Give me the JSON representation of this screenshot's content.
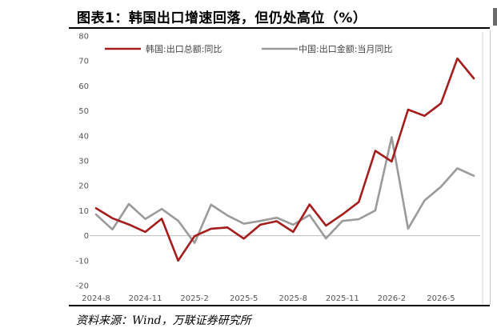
{
  "header": {
    "title": "图表1：韩国出口增速回落，但仍处高位（%）"
  },
  "footer": {
    "source": "资料来源：Wind，万联证券研究所"
  },
  "chart_data": {
    "type": "line",
    "title": "",
    "xlabel": "",
    "ylabel": "",
    "ylim": [
      -20,
      80
    ],
    "yticks": [
      -20,
      -10,
      0,
      10,
      20,
      30,
      40,
      50,
      60,
      70,
      80
    ],
    "categories": [
      "2024-8",
      "2024-9",
      "2024-10",
      "2024-11",
      "2024-12",
      "2025-1",
      "2025-2",
      "2025-3",
      "2025-4",
      "2025-5",
      "2025-6",
      "2025-7",
      "2025-8",
      "2025-9",
      "2025-10",
      "2025-11",
      "2025-12",
      "2026-1",
      "2026-2",
      "2026-3",
      "2026-4",
      "2026-5",
      "2026-6",
      "2026-7"
    ],
    "xticks": [
      "2024-8",
      "2024-11",
      "2025-2",
      "2025-5",
      "2025-8",
      "2025-11",
      "2026-2",
      "2026-5"
    ],
    "grid": false,
    "legend_position": "top-left",
    "series": [
      {
        "name": "韩国:出口总额:同比",
        "color": "#a51c1c",
        "values": [
          11,
          7,
          4.5,
          1.5,
          6.8,
          -10,
          -0.2,
          2.8,
          3.3,
          -1.2,
          4.4,
          5.8,
          1.5,
          12.5,
          4,
          8.5,
          13.5,
          34,
          29.7,
          50.5,
          48,
          53,
          71,
          63
        ]
      },
      {
        "name": "中国:出口金额:当月同比",
        "color": "#9a9a9a",
        "values": [
          8.5,
          2.5,
          12.7,
          6.7,
          10.7,
          6,
          -2.9,
          12.4,
          8.1,
          4.8,
          5.9,
          7.2,
          4.4,
          8.3,
          -1.1,
          5.9,
          6.6,
          10.1,
          39.5,
          2.8,
          14.1,
          19.6,
          27,
          24
        ]
      }
    ]
  }
}
